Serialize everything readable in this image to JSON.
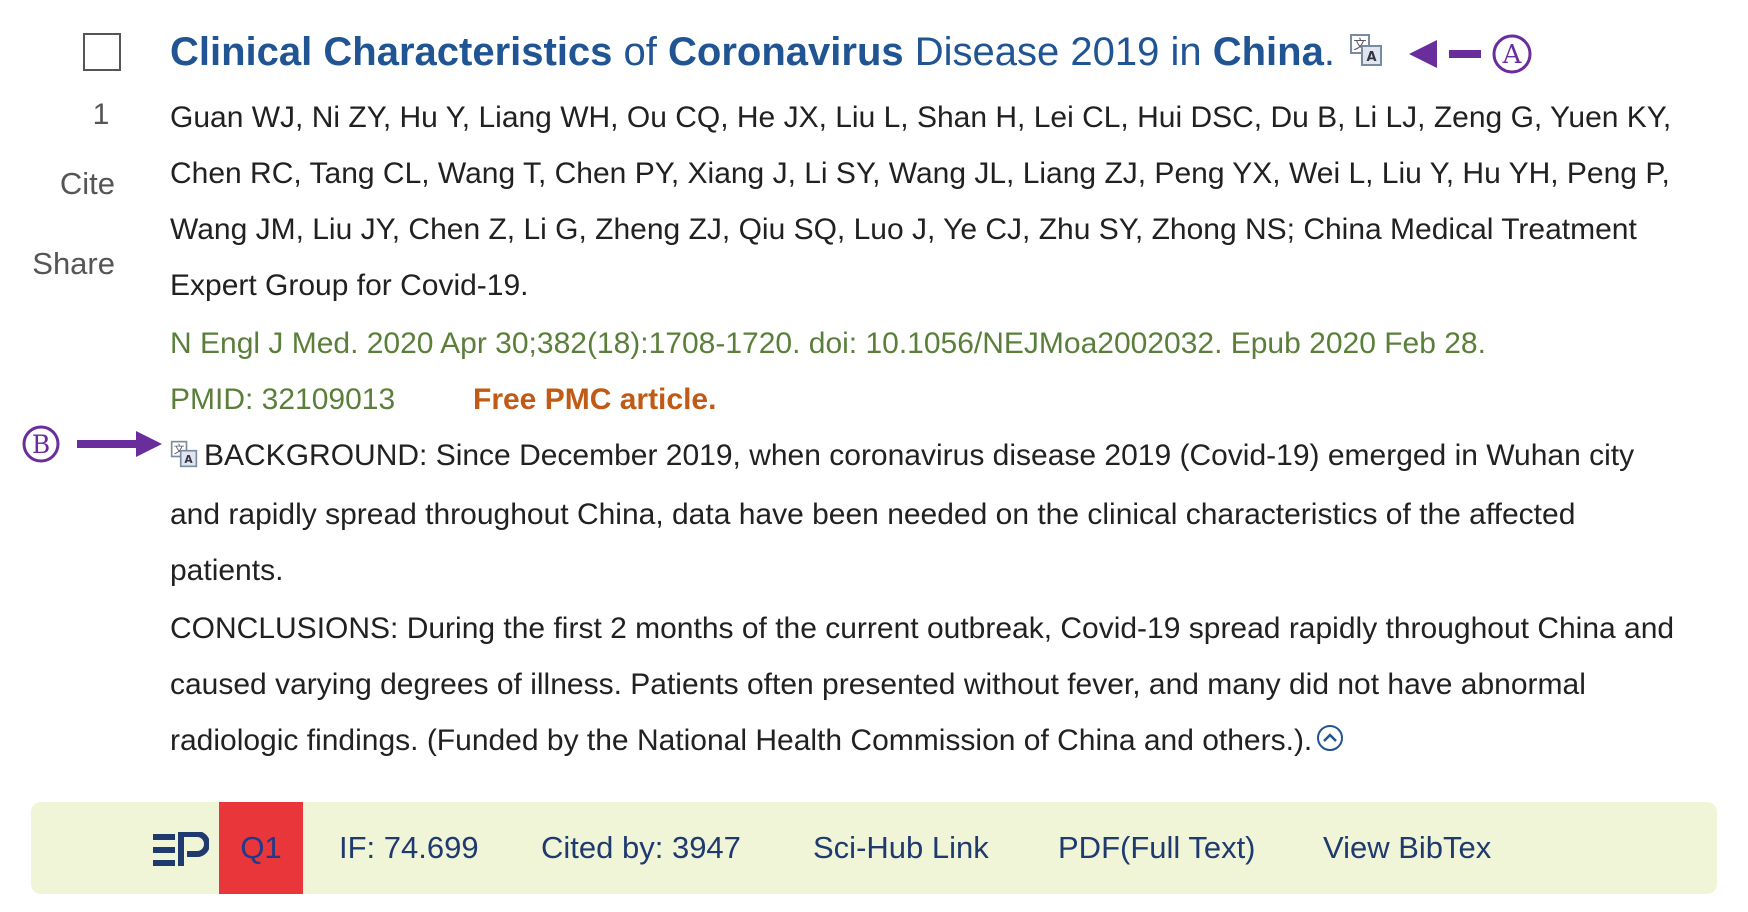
{
  "result": {
    "index": "1",
    "cite_label": "Cite",
    "share_label": "Share",
    "title_parts": [
      {
        "text": "Clinical Characteristics",
        "bold": true
      },
      {
        "text": " of ",
        "bold": false
      },
      {
        "text": "Coronavirus",
        "bold": true
      },
      {
        "text": " Disease 2019 in ",
        "bold": false
      },
      {
        "text": "China",
        "bold": true
      },
      {
        "text": ".",
        "bold": false
      }
    ],
    "authors": "Guan WJ, Ni ZY, Hu Y, Liang WH, Ou CQ, He JX, Liu L, Shan H, Lei CL, Hui DSC, Du B, Li LJ, Zeng G, Yuen KY, Chen RC, Tang CL, Wang T, Chen PY, Xiang J, Li SY, Wang JL, Liang ZJ, Peng YX, Wei L, Liu Y, Hu YH, Peng P, Wang JM, Liu JY, Chen Z, Li G, Zheng ZJ, Qiu SQ, Luo J, Ye CJ, Zhu SY, Zhong NS; China Medical Treatment Expert Group for Covid-19.",
    "citation": "N Engl J Med. 2020 Apr 30;382(18):1708-1720. doi: 10.1056/NEJMoa2002032. Epub 2020 Feb 28.",
    "pmid": "PMID: 32109013",
    "free_pmc": "Free PMC article.",
    "background": "BACKGROUND: Since December 2019, when coronavirus disease 2019 (Covid-19) emerged in Wuhan city and rapidly spread throughout China, data have been needed on the clinical characteristics of the affected patients.",
    "conclusions": "CONCLUSIONS: During the first 2 months of the current outbreak, Covid-19 spread rapidly throughout China and caused varying degrees of illness. Patients often presented without fever, and many did not have abnormal radiologic findings. (Funded by the National Health Commission of China and others.)."
  },
  "annotations": {
    "a_label": "A",
    "b_label": "B",
    "color": "#6a2d9c"
  },
  "bar": {
    "quartile": "Q1",
    "impact_factor": "IF: 74.699",
    "cited_by": "Cited by: 3947",
    "scihub": "Sci-Hub Link",
    "pdf": "PDF(Full Text)",
    "bibtex": "View BibTex"
  },
  "colors": {
    "title": "#205493",
    "citation": "#5b7f3a",
    "free_pmc": "#c05a14",
    "bar_bg": "#f0f5d8",
    "quartile_bg": "#e8363a"
  },
  "icons": {
    "translate": "translate-icon",
    "collapse": "collapse-up-icon",
    "logo": "easy-pubmed-logo"
  }
}
